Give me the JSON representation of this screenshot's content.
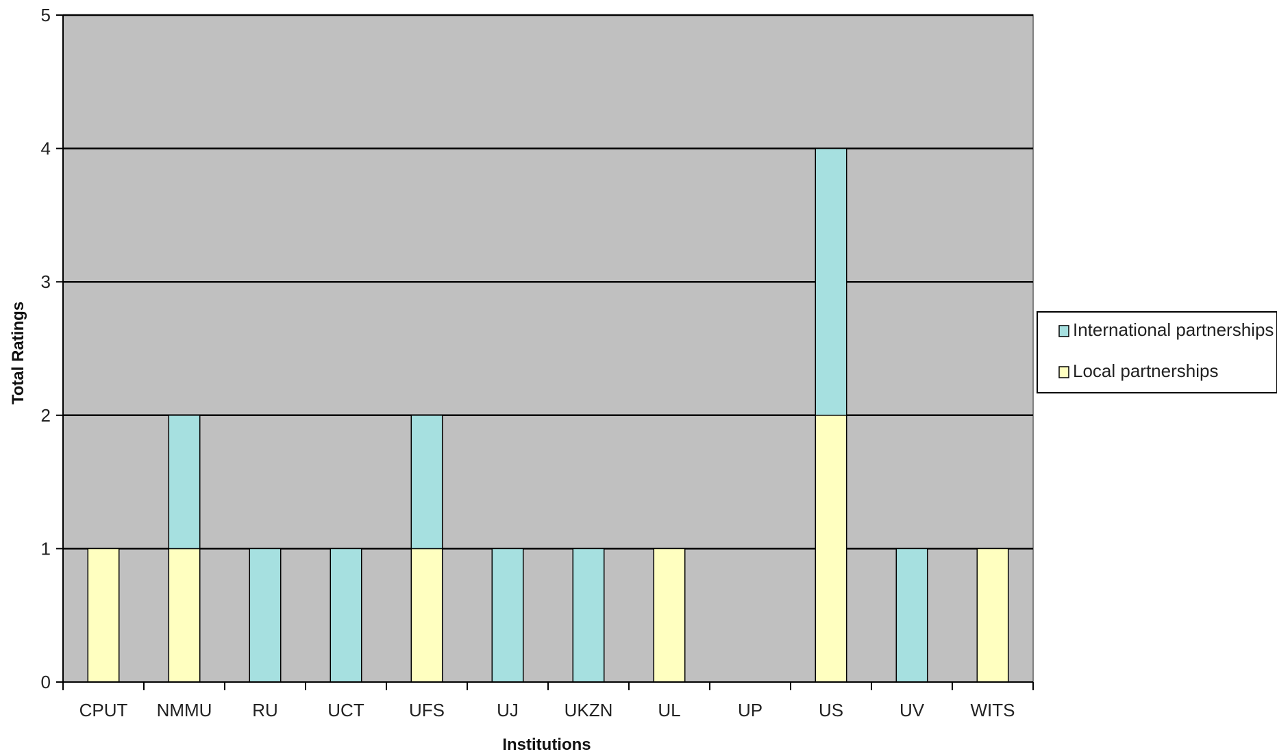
{
  "chart_data": {
    "type": "bar",
    "stacked": true,
    "title": "",
    "xlabel": "Institutions",
    "ylabel": "Total Ratings",
    "ylim": [
      0,
      5
    ],
    "yticks": [
      "0",
      "1",
      "2",
      "3",
      "4",
      "5"
    ],
    "categories": [
      "CPUT",
      "NMMU",
      "RU",
      "UCT",
      "UFS",
      "UJ",
      "UKZN",
      "UL",
      "UP",
      "US",
      "UV",
      "WITS"
    ],
    "series": [
      {
        "name": "Local partnerships",
        "color": "#ffffc0",
        "values": [
          1,
          1,
          0,
          0,
          1,
          0,
          0,
          1,
          0,
          2,
          0,
          1
        ]
      },
      {
        "name": "International partnerships",
        "color": "#a6e0e0",
        "values": [
          0,
          1,
          1,
          1,
          1,
          1,
          1,
          0,
          0,
          2,
          1,
          0
        ]
      }
    ],
    "legend_order": [
      "International partnerships",
      "Local partnerships"
    ],
    "legend_position": "right",
    "grid": true,
    "plot_background": "#c0c0c0"
  }
}
